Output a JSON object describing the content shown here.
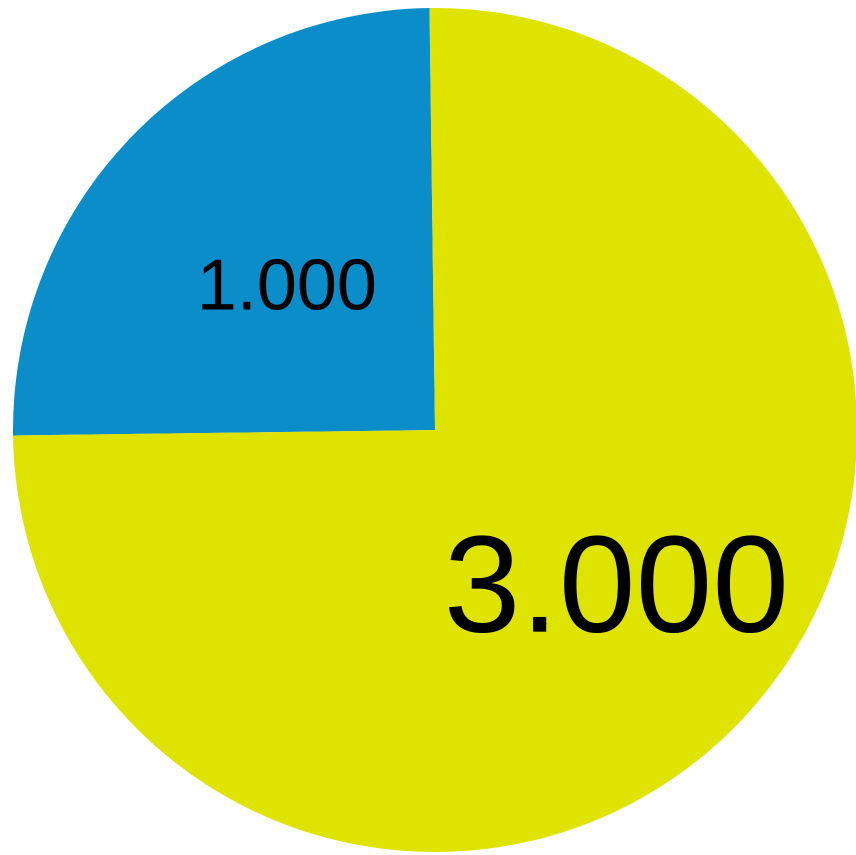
{
  "chart_data": {
    "type": "pie",
    "slices": [
      {
        "value": 1000,
        "label": "1.000",
        "color": "#0A8DC8"
      },
      {
        "value": 3000,
        "label": "3.000",
        "color": "#DFE300"
      }
    ]
  }
}
